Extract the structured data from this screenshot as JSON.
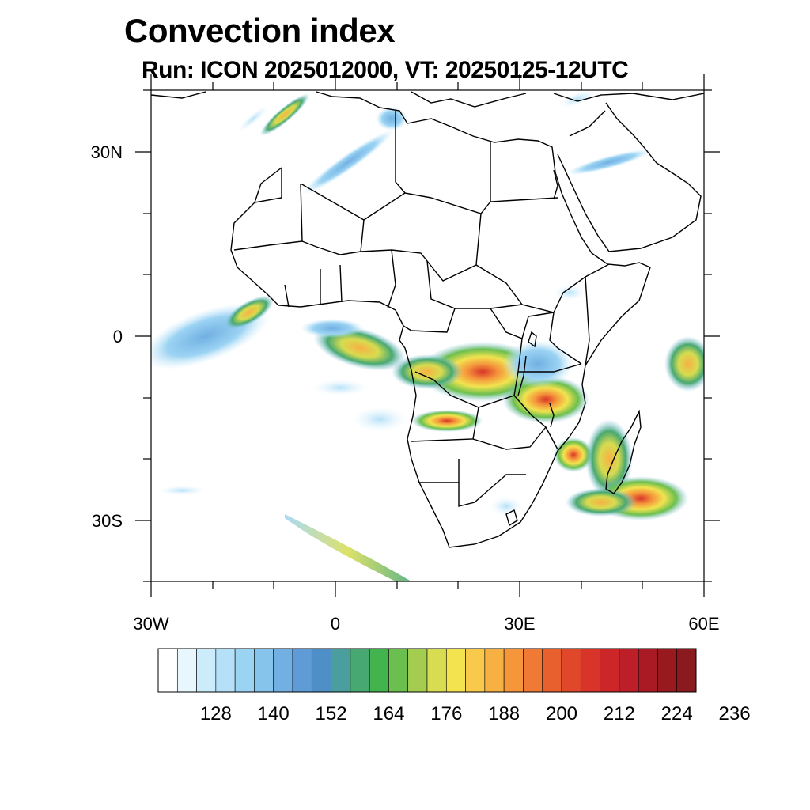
{
  "title": "Convection index",
  "subtitle": "Run: ICON 2025012000,  VT: 20250125-12UTC",
  "map": {
    "region": "Africa",
    "projection": "cylindrical equidistant",
    "lon_range": [
      -30,
      60
    ],
    "lat_range": [
      -40,
      40
    ],
    "lat_labels": [
      "30N",
      "0",
      "30S"
    ],
    "lon_labels": [
      "30W",
      "0",
      "30E",
      "60E"
    ],
    "coastline_color": "#000000"
  },
  "colorbar": {
    "labels": [
      "128",
      "140",
      "152",
      "164",
      "176",
      "188",
      "200",
      "212",
      "224",
      "236"
    ],
    "colors": [
      "#ffffff",
      "#e8f6fd",
      "#cdecfb",
      "#b5e1f8",
      "#9bd3f3",
      "#86c4ec",
      "#72b0e3",
      "#5e9bd7",
      "#4d8fc6",
      "#4a9e9e",
      "#48a871",
      "#43b34d",
      "#6bbf4e",
      "#a4cc4f",
      "#d7dc50",
      "#f2e34f",
      "#f8c94a",
      "#f7b143",
      "#f5963b",
      "#f07a35",
      "#e8602e",
      "#e0472b",
      "#d83429",
      "#cc2628",
      "#bc1f27",
      "#aa1a24",
      "#981a1f",
      "#8a1a1d"
    ]
  }
}
